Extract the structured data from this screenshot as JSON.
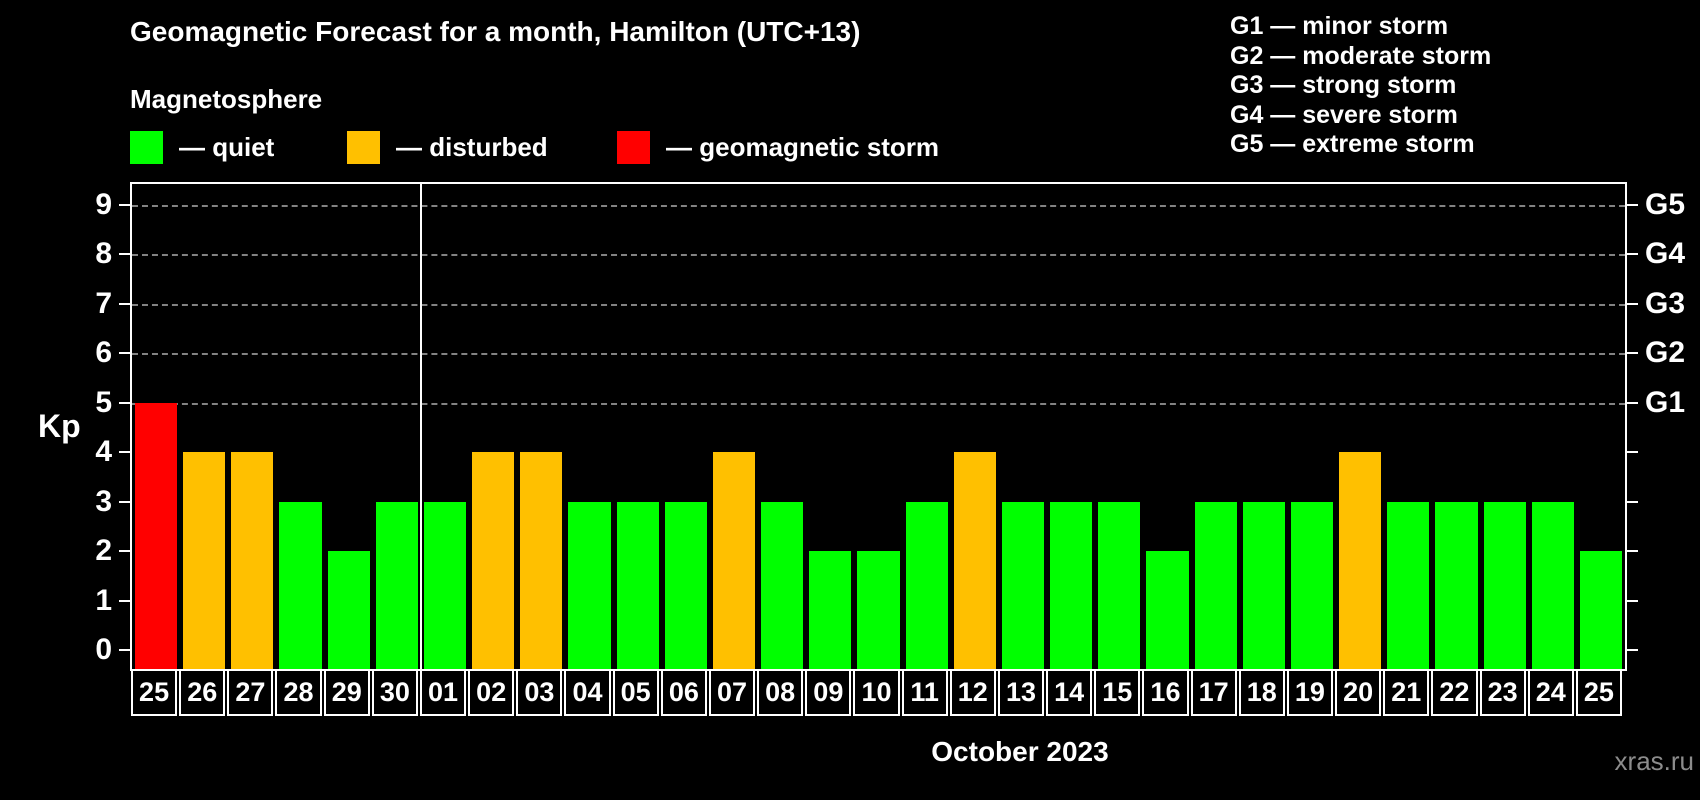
{
  "title": "Geomagnetic Forecast for a month, Hamilton (UTC+13)",
  "subtitle": "Magnetosphere",
  "watermark": "xras.ru",
  "colors": {
    "background": "#000000",
    "quiet": "#00ff00",
    "disturbed": "#ffc000",
    "storm": "#ff0000",
    "gridline": "#9a9a9a",
    "axis": "#ffffff",
    "watermark_text": "#8c8c8c"
  },
  "legend": {
    "items": [
      {
        "key": "quiet",
        "label": "— quiet"
      },
      {
        "key": "disturbed",
        "label": "— disturbed"
      },
      {
        "key": "storm",
        "label": "— geomagnetic storm"
      }
    ]
  },
  "g_legend": {
    "lines": [
      "G1 — minor storm",
      "G2 — moderate storm",
      "G3 — strong storm",
      "G4 — severe storm",
      "G5 — extreme storm"
    ]
  },
  "chart_data": {
    "type": "bar",
    "title": "Geomagnetic Forecast for a month, Hamilton (UTC+13)",
    "xlabel": "October 2023",
    "ylabel": "Kp",
    "ylim": [
      0,
      9.4
    ],
    "yticks": [
      0,
      1,
      2,
      3,
      4,
      5,
      6,
      7,
      8,
      9
    ],
    "grid_values": [
      5,
      6,
      7,
      8,
      9
    ],
    "right_axis_labels": [
      {
        "label": "G1",
        "value": 5
      },
      {
        "label": "G2",
        "value": 6
      },
      {
        "label": "G3",
        "value": 7
      },
      {
        "label": "G4",
        "value": 8
      },
      {
        "label": "G5",
        "value": 9
      }
    ],
    "legend_position": "top",
    "grid": "horizontal-dashed",
    "month_separator_after_index": 5,
    "categories": [
      "25",
      "26",
      "27",
      "28",
      "29",
      "30",
      "01",
      "02",
      "03",
      "04",
      "05",
      "06",
      "07",
      "08",
      "09",
      "10",
      "11",
      "12",
      "13",
      "14",
      "15",
      "16",
      "17",
      "18",
      "19",
      "20",
      "21",
      "22",
      "23",
      "24",
      "25"
    ],
    "values": [
      5,
      4,
      4,
      3,
      2,
      3,
      3,
      4,
      4,
      3,
      3,
      3,
      4,
      3,
      2,
      2,
      3,
      4,
      3,
      3,
      3,
      2,
      3,
      3,
      3,
      4,
      3,
      3,
      3,
      3,
      2
    ],
    "statuses": [
      "storm",
      "disturbed",
      "disturbed",
      "quiet",
      "quiet",
      "quiet",
      "quiet",
      "disturbed",
      "disturbed",
      "quiet",
      "quiet",
      "quiet",
      "disturbed",
      "quiet",
      "quiet",
      "quiet",
      "quiet",
      "disturbed",
      "quiet",
      "quiet",
      "quiet",
      "quiet",
      "quiet",
      "quiet",
      "quiet",
      "disturbed",
      "quiet",
      "quiet",
      "quiet",
      "quiet",
      "quiet"
    ]
  }
}
